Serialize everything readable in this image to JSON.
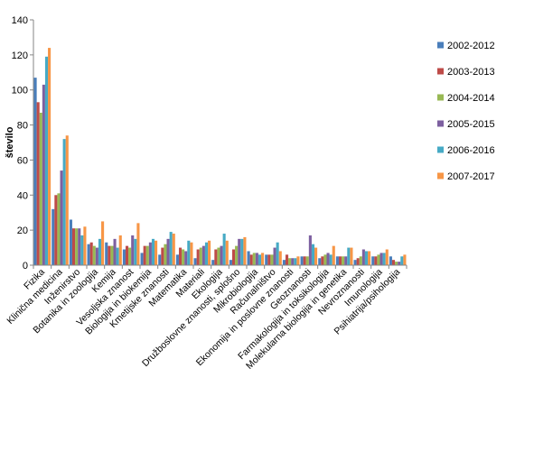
{
  "chart_data": {
    "type": "bar",
    "ylabel": "število",
    "ylim": [
      0,
      140
    ],
    "yticks": [
      0,
      20,
      40,
      60,
      80,
      100,
      120,
      140
    ],
    "grid": false,
    "legend": "right",
    "categories": [
      "Fizika",
      "Klinična medicina",
      "Inženirstvo",
      "Botanika in zoologija",
      "Kemija",
      "Vesoljska znanost",
      "Biologija in biokemija",
      "Kmetijske znanosti",
      "Matematika",
      "Materiali",
      "Ekologija",
      "Družboslovne znanosti, splošno",
      "Mikrobiologija",
      "Računalništvo",
      "Ekonomija in poslovne znanosti",
      "Geoznanosti",
      "Farmakologija in toksikologija",
      "Molekularna biologija in genetika",
      "Nevroznanosti",
      "Imunologija",
      "Psihiatrija/psihologija"
    ],
    "series": [
      {
        "name": "2002-2012",
        "color": "#4a7ebb",
        "values": [
          107,
          32,
          26,
          12,
          13,
          9,
          7,
          6,
          6,
          4,
          3,
          3,
          8,
          6,
          3,
          5,
          4,
          5,
          3,
          5,
          5
        ]
      },
      {
        "name": "2003-2013",
        "color": "#be4b48",
        "values": [
          93,
          40,
          21,
          13,
          11,
          11,
          11,
          10,
          10,
          9,
          9,
          9,
          6,
          6,
          6,
          5,
          5,
          5,
          4,
          5,
          3
        ]
      },
      {
        "name": "2004-2014",
        "color": "#98b954",
        "values": [
          87,
          41,
          21,
          11,
          11,
          10,
          11,
          12,
          9,
          10,
          10,
          11,
          7,
          6,
          4,
          5,
          6,
          5,
          5,
          6,
          2
        ]
      },
      {
        "name": "2005-2015",
        "color": "#7d60a0",
        "values": [
          103,
          54,
          21,
          10,
          15,
          17,
          13,
          15,
          8,
          11,
          11,
          15,
          7,
          10,
          4,
          17,
          7,
          5,
          9,
          7,
          2
        ]
      },
      {
        "name": "2006-2016",
        "color": "#46aac5",
        "values": [
          119,
          72,
          17,
          15,
          10,
          15,
          15,
          19,
          14,
          13,
          18,
          15,
          6,
          13,
          4,
          12,
          6,
          10,
          8,
          7,
          5
        ]
      },
      {
        "name": "2007-2017",
        "color": "#f79646",
        "values": [
          124,
          74,
          22,
          25,
          17,
          24,
          14,
          18,
          13,
          14,
          14,
          16,
          7,
          8,
          5,
          10,
          11,
          10,
          8,
          9,
          6
        ]
      }
    ]
  }
}
